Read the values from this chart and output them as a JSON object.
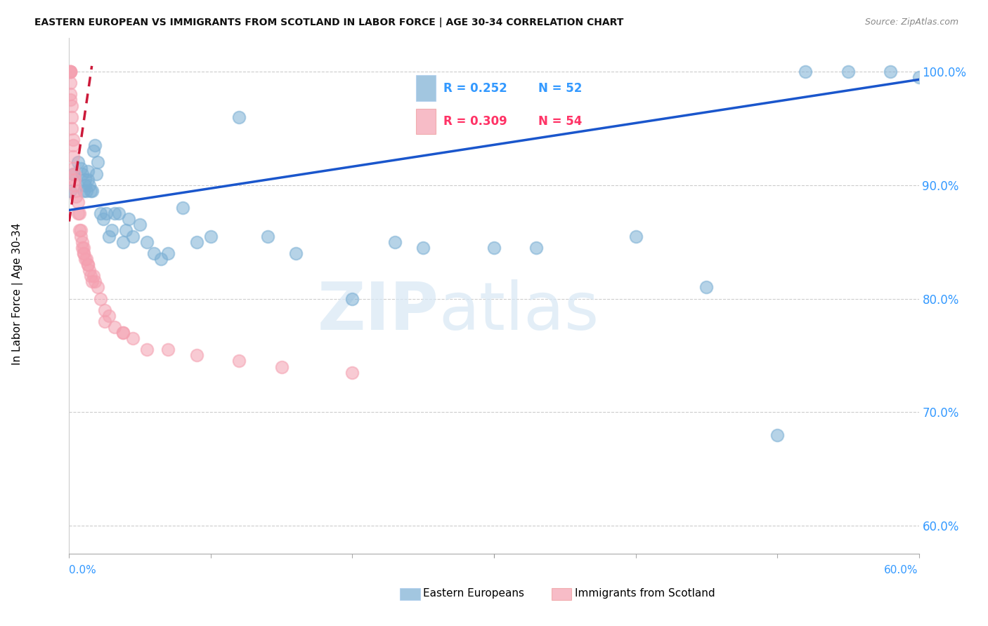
{
  "title": "EASTERN EUROPEAN VS IMMIGRANTS FROM SCOTLAND IN LABOR FORCE | AGE 30-34 CORRELATION CHART",
  "source": "Source: ZipAtlas.com",
  "ylabel": "In Labor Force | Age 30-34",
  "y_tick_labels": [
    "60.0%",
    "70.0%",
    "80.0%",
    "90.0%",
    "100.0%"
  ],
  "y_tick_values": [
    0.6,
    0.7,
    0.8,
    0.9,
    1.0
  ],
  "x_tick_values": [
    0.0,
    0.1,
    0.2,
    0.3,
    0.4,
    0.5,
    0.6
  ],
  "x_range": [
    0.0,
    0.6
  ],
  "y_range": [
    0.575,
    1.03
  ],
  "legend_blue_r": "R = 0.252",
  "legend_blue_n": "N = 52",
  "legend_pink_r": "R = 0.309",
  "legend_pink_n": "N = 54",
  "blue_color": "#7BAFD4",
  "pink_color": "#F4A0B0",
  "blue_line_color": "#1A56CC",
  "pink_line_color": "#CC1A3A",
  "blue_line_x0": 0.0,
  "blue_line_y0": 0.878,
  "blue_line_x1": 0.6,
  "blue_line_y1": 0.993,
  "pink_line_x0": 0.0,
  "pink_line_y0": 0.868,
  "pink_line_x1": 0.016,
  "pink_line_y1": 1.005,
  "blue_x": [
    0.001,
    0.003,
    0.006,
    0.008,
    0.009,
    0.01,
    0.011,
    0.011,
    0.012,
    0.013,
    0.013,
    0.014,
    0.015,
    0.016,
    0.017,
    0.018,
    0.019,
    0.02,
    0.022,
    0.024,
    0.026,
    0.028,
    0.03,
    0.032,
    0.035,
    0.038,
    0.04,
    0.042,
    0.045,
    0.05,
    0.055,
    0.06,
    0.065,
    0.07,
    0.08,
    0.09,
    0.1,
    0.12,
    0.14,
    0.16,
    0.2,
    0.25,
    0.3,
    0.4,
    0.45,
    0.5,
    0.52,
    0.55,
    0.58,
    0.6,
    0.23,
    0.33
  ],
  "blue_y": [
    0.895,
    0.91,
    0.92,
    0.915,
    0.91,
    0.895,
    0.905,
    0.9,
    0.895,
    0.912,
    0.905,
    0.9,
    0.895,
    0.895,
    0.93,
    0.935,
    0.91,
    0.92,
    0.875,
    0.87,
    0.875,
    0.855,
    0.86,
    0.875,
    0.875,
    0.85,
    0.86,
    0.87,
    0.855,
    0.865,
    0.85,
    0.84,
    0.835,
    0.84,
    0.88,
    0.85,
    0.855,
    0.96,
    0.855,
    0.84,
    0.8,
    0.845,
    0.845,
    0.855,
    0.81,
    0.68,
    1.0,
    1.0,
    1.0,
    0.995,
    0.85,
    0.845
  ],
  "pink_x": [
    0.001,
    0.001,
    0.001,
    0.001,
    0.001,
    0.001,
    0.001,
    0.002,
    0.002,
    0.002,
    0.003,
    0.003,
    0.003,
    0.003,
    0.004,
    0.004,
    0.004,
    0.005,
    0.005,
    0.006,
    0.006,
    0.007,
    0.007,
    0.008,
    0.008,
    0.009,
    0.009,
    0.01,
    0.01,
    0.011,
    0.012,
    0.013,
    0.014,
    0.015,
    0.016,
    0.017,
    0.018,
    0.02,
    0.022,
    0.025,
    0.028,
    0.032,
    0.038,
    0.045,
    0.055,
    0.07,
    0.09,
    0.12,
    0.15,
    0.2,
    0.01,
    0.013,
    0.025,
    0.038
  ],
  "pink_y": [
    1.0,
    1.0,
    1.0,
    1.0,
    0.99,
    0.98,
    0.975,
    0.97,
    0.96,
    0.95,
    0.94,
    0.935,
    0.925,
    0.915,
    0.91,
    0.905,
    0.9,
    0.895,
    0.89,
    0.885,
    0.875,
    0.875,
    0.86,
    0.86,
    0.855,
    0.85,
    0.845,
    0.845,
    0.84,
    0.835,
    0.835,
    0.83,
    0.825,
    0.82,
    0.815,
    0.82,
    0.815,
    0.81,
    0.8,
    0.79,
    0.785,
    0.775,
    0.77,
    0.765,
    0.755,
    0.755,
    0.75,
    0.745,
    0.74,
    0.735,
    0.84,
    0.83,
    0.78,
    0.77
  ]
}
